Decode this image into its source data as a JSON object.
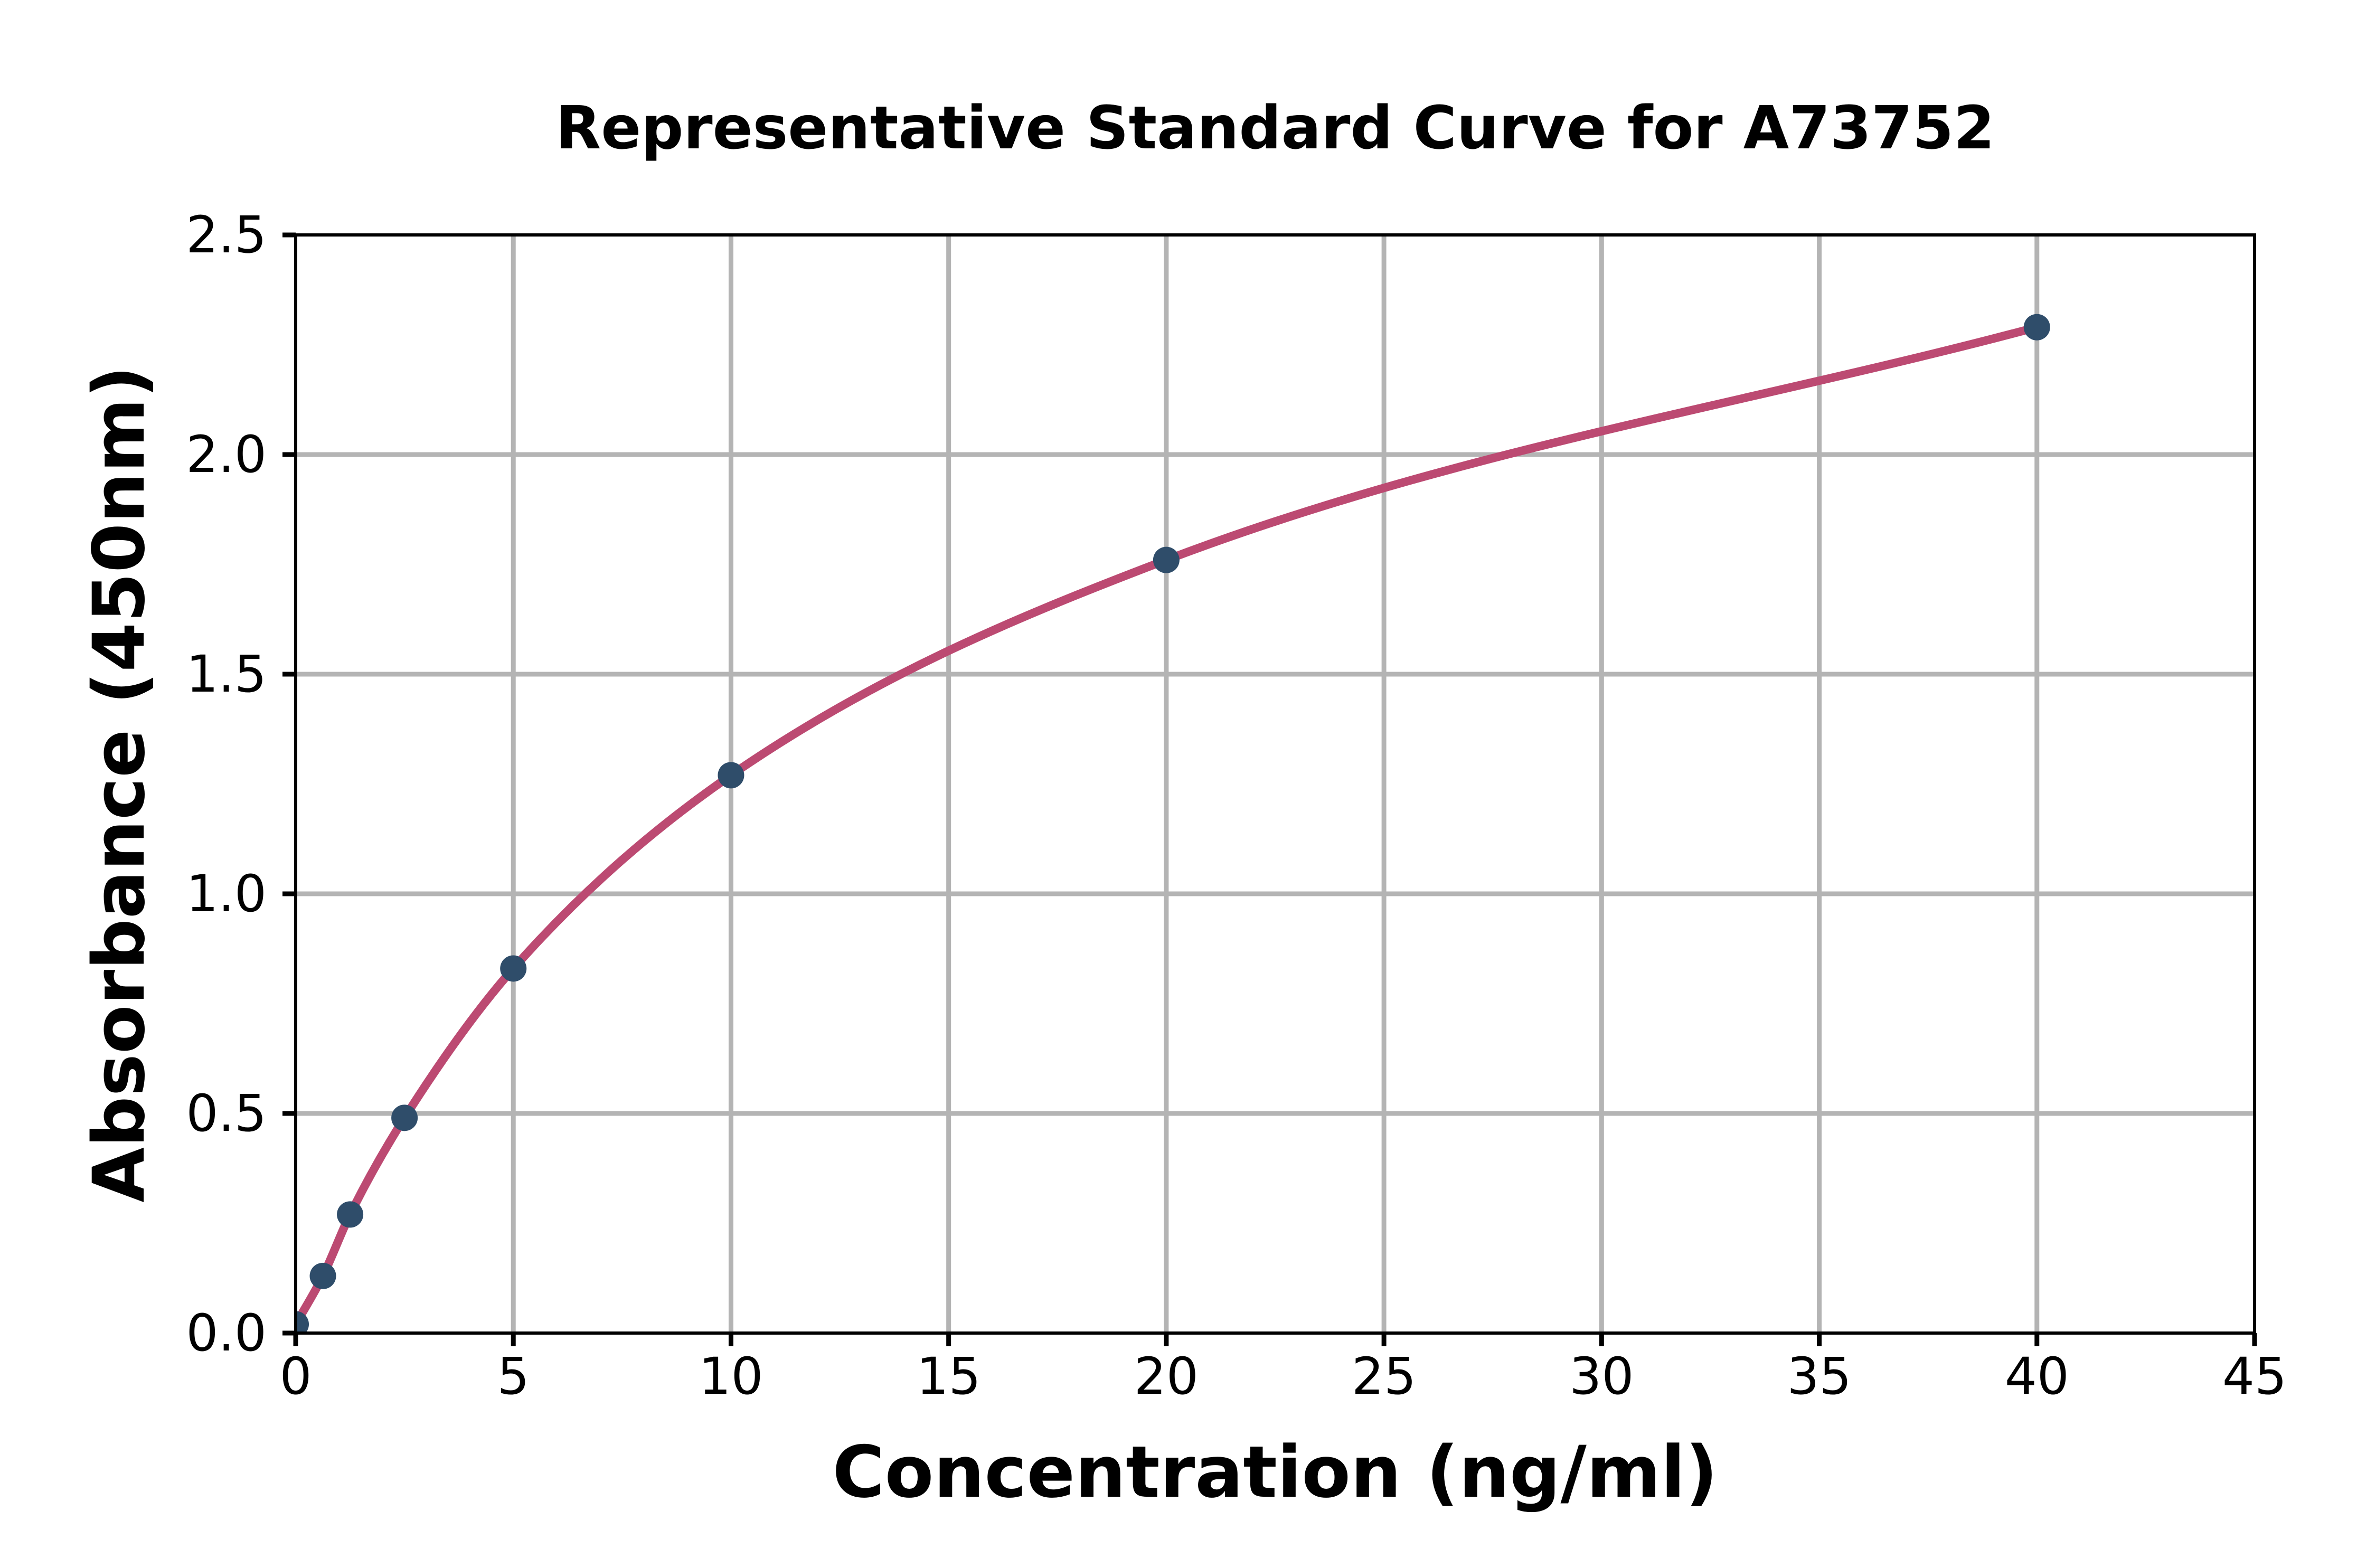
{
  "chart_data": {
    "type": "scatter",
    "title": "Representative Standard Curve for A73752",
    "xlabel": "Concentration (ng/ml)",
    "ylabel": "Absorbance (450nm)",
    "xlim": [
      0,
      45
    ],
    "ylim": [
      0,
      2.5
    ],
    "grid": true,
    "legend_position": "none",
    "xticks": [
      0,
      5,
      10,
      15,
      20,
      25,
      30,
      35,
      40,
      45
    ],
    "xtick_labels": [
      "0",
      "5",
      "10",
      "15",
      "20",
      "25",
      "30",
      "35",
      "40",
      "45"
    ],
    "yticks": [
      0,
      0.5,
      1,
      1.5,
      2,
      2.5
    ],
    "ytick_labels": [
      "0.0",
      "0.5",
      "1.0",
      "1.5",
      "2.0",
      "2.5"
    ],
    "series": [
      {
        "name": "standard-points",
        "kind": "points",
        "marker": "circle",
        "color": "#2f4d6a",
        "x": [
          0,
          0.625,
          1.25,
          2.5,
          5,
          10,
          20,
          40
        ],
        "y": [
          0.02,
          0.13,
          0.27,
          0.49,
          0.83,
          1.27,
          1.76,
          2.29
        ]
      },
      {
        "name": "fitted-standard-curve",
        "kind": "smooth-line",
        "color": "#bc4a72",
        "x": [
          0,
          0.625,
          1.25,
          2.5,
          5,
          10,
          20,
          40
        ],
        "y": [
          0.02,
          0.13,
          0.27,
          0.49,
          0.83,
          1.27,
          1.76,
          2.29
        ]
      }
    ],
    "colors": {
      "background": "#ffffff",
      "axis": "#000000",
      "grid": "#b4b4b4",
      "text": "#000000"
    }
  }
}
